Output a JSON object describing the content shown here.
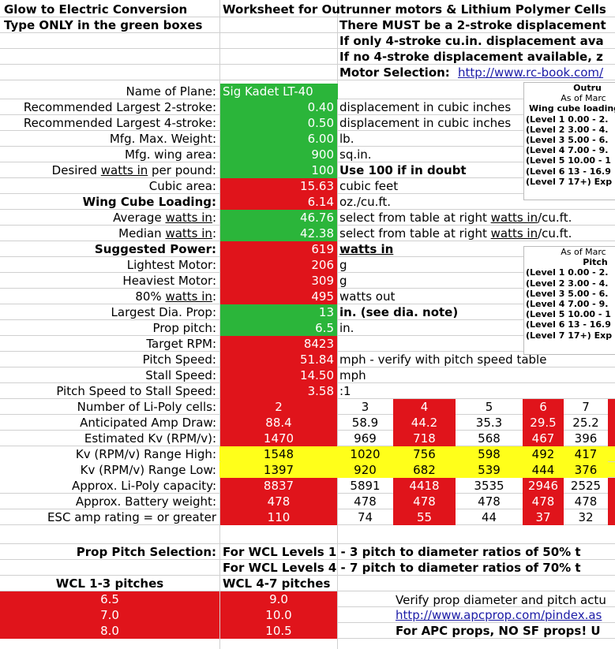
{
  "header": {
    "title": "Glow to Electric Conversion",
    "subtitle": "Worksheet for Outrunner motors & Lithium Polymer Cells",
    "instruction": "Type ONLY in the green boxes",
    "note1": "There MUST be a 2-stroke displacement",
    "note2": "If only 4-stroke cu.in. displacement ava",
    "note3": "If no 4-stroke displacement available, z",
    "motor_label": "Motor Selection:",
    "motor_link": "http://www.rc-book.com/"
  },
  "inputs": {
    "plane_label": "Name of Plane:",
    "plane_value": "Sig Kadet LT-40",
    "rows": [
      {
        "label": "Recommended Largest 2-stroke:",
        "value": "0.40",
        "unit": "displacement in cubic inches"
      },
      {
        "label": "Recommended Largest 4-stroke:",
        "value": "0.50",
        "unit": "displacement in cubic inches"
      },
      {
        "label": "Mfg. Max. Weight:",
        "value": "6.00",
        "unit": "lb."
      },
      {
        "label": "Mfg. wing area:",
        "value": "900",
        "unit": "sq.in."
      }
    ],
    "watts_label_pre": "Desired ",
    "watts_label_u": "watts in",
    "watts_label_post": " per pound:",
    "watts_value": "100",
    "watts_unit": "Use 100 if in doubt"
  },
  "results": {
    "cubic_area": {
      "label": "Cubic area:",
      "value": "15.63",
      "unit": "cubic feet"
    },
    "wing_cube": {
      "label": "Wing Cube Loading:",
      "value": "6.14",
      "unit": "oz./cu.ft."
    },
    "avg_watts": {
      "label_pre": "Average ",
      "label_u": "watts in",
      "label_post": ":",
      "value": "46.76",
      "unit_pre": "select from table at right ",
      "unit_u": "watts in",
      "unit_post": "/cu.ft."
    },
    "median_watts": {
      "label_pre": "Median ",
      "label_u": "watts in",
      "label_post": ":",
      "value": "42.38",
      "unit_pre": "select from table at right ",
      "unit_u": "watts in",
      "unit_post": "/cu.ft."
    },
    "suggested_power": {
      "label": "Suggested Power:",
      "value": "619",
      "unit": "watts in"
    },
    "lightest_motor": {
      "label": "Lightest Motor:",
      "value": "206",
      "unit": "g"
    },
    "heaviest_motor": {
      "label": "Heaviest Motor:",
      "value": "309",
      "unit": "g"
    },
    "watts_out": {
      "label_pre": "80% ",
      "label_u": "watts in",
      "label_post": ":",
      "value": "495",
      "unit": "watts out"
    },
    "largest_prop": {
      "label": "Largest Dia. Prop:",
      "value": "13",
      "unit": "in. (see dia. note)"
    },
    "prop_pitch": {
      "label": "Prop pitch:",
      "value": "6.5",
      "unit": "in."
    },
    "target_rpm": {
      "label": "Target RPM:",
      "value": "8423"
    },
    "pitch_speed": {
      "label": "Pitch Speed:",
      "value": "51.84",
      "unit": "mph - verify with pitch speed table"
    },
    "stall_speed": {
      "label": "Stall Speed:",
      "value": "14.50",
      "unit": "mph"
    },
    "ratio": {
      "label": "Pitch Speed to Stall Speed:",
      "value": "3.58",
      "unit": ":1"
    }
  },
  "cells": {
    "labels": [
      "Number of Li-Poly cells:",
      "Anticipated Amp Draw:",
      "Estimated Kv (RPM/v):",
      "Kv (RPM/v) Range High:",
      "Kv (RPM/v) Range Low:",
      "Approx. Li-Poly capacity:",
      "Approx. Battery weight:",
      "ESC amp rating = or greater"
    ],
    "columns": [
      {
        "cells": "2",
        "amp": "88.4",
        "kv": "1470",
        "high": "1548",
        "low": "1397",
        "cap": "8837",
        "weight": "478",
        "esc": "110"
      },
      {
        "cells": "3",
        "amp": "58.9",
        "kv": "969",
        "high": "1020",
        "low": "920",
        "cap": "5891",
        "weight": "478",
        "esc": "74"
      },
      {
        "cells": "4",
        "amp": "44.2",
        "kv": "718",
        "high": "756",
        "low": "682",
        "cap": "4418",
        "weight": "478",
        "esc": "55"
      },
      {
        "cells": "5",
        "amp": "35.3",
        "kv": "568",
        "high": "598",
        "low": "539",
        "cap": "3535",
        "weight": "478",
        "esc": "44"
      },
      {
        "cells": "6",
        "amp": "29.5",
        "kv": "467",
        "high": "492",
        "low": "444",
        "cap": "2946",
        "weight": "478",
        "esc": "37"
      },
      {
        "cells": "7",
        "amp": "25.2",
        "kv": "396",
        "high": "417",
        "low": "376",
        "cap": "2525",
        "weight": "478",
        "esc": "32"
      }
    ]
  },
  "pitch_selection": {
    "label": "Prop Pitch Selection:",
    "line1": "For WCL Levels 1 - 3 pitch to diameter ratios of 50% t",
    "line2": "For WCL Levels 4 - 7 pitch to diameter ratios of 70% t",
    "col1_header": "WCL 1-3 pitches",
    "col2_header": "WCL 4-7 pitches",
    "pitches": [
      [
        "6.5",
        "9.0"
      ],
      [
        "7.0",
        "10.0"
      ],
      [
        "8.0",
        "10.5"
      ]
    ],
    "verify_text": "Verify prop diameter and pitch actu",
    "verify_link": "http://www.apcprop.com/pindex.as",
    "apc_note": "For APC props, NO SF props!  U"
  },
  "side_table1": {
    "title": "Outru",
    "date": "As of Marc",
    "header": "Wing cube loading",
    "levels": [
      "(Level 1  0.00 - 2.",
      "(Level 2  3.00 - 4.",
      "(Level 3  5.00 - 6.",
      "(Level 4  7.00 - 9.",
      "(Level 5  10.00 - 1",
      "(Level 6  13 - 16.9",
      "(Level 7  17+) Exp"
    ]
  },
  "side_table2": {
    "date": "As of Marc",
    "header": "Pitch",
    "levels": [
      "(Level 1  0.00 - 2.",
      "(Level 2  3.00 - 4.",
      "(Level 3  5.00 - 6.",
      "(Level 4  7.00 - 9.",
      "(Level 5  10.00 - 1",
      "(Level 6  13 - 16.9",
      "(Level 7  17+) Exp"
    ]
  },
  "colors": {
    "red": "#e0141b",
    "green": "#2bb53a",
    "yellow": "#ffff1a",
    "link": "#1a1aa6"
  }
}
